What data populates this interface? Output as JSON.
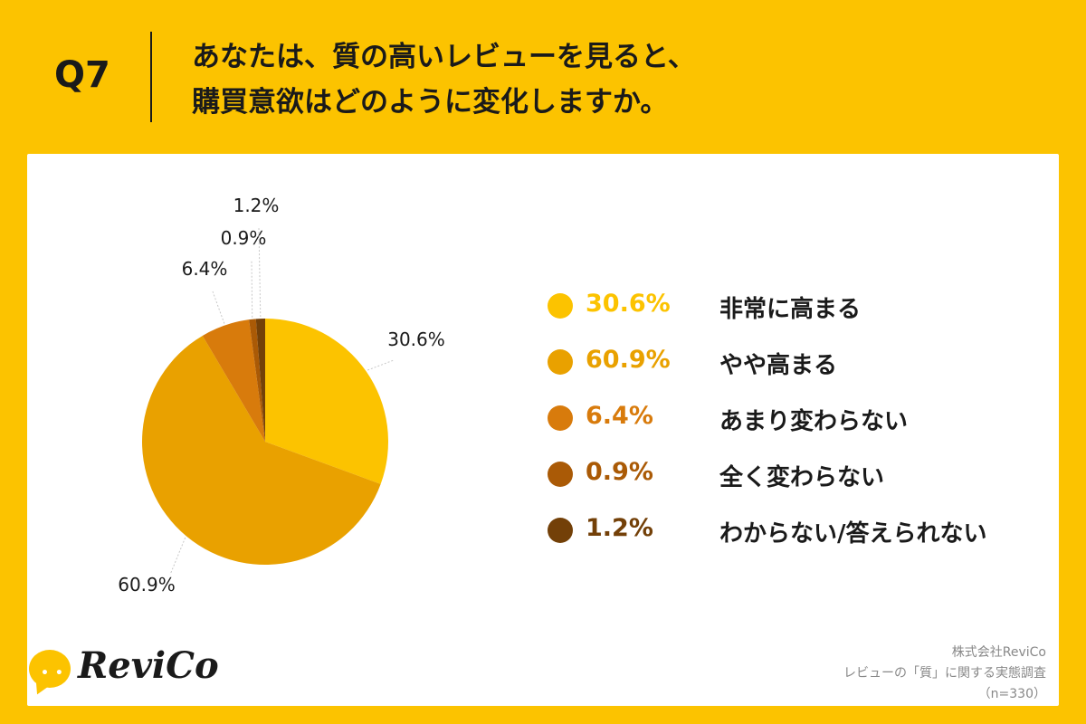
{
  "question": {
    "number": "Q7",
    "title_line1": "あなたは、質の高いレビューを見ると、",
    "title_line2": "購買意欲はどのように変化しますか。"
  },
  "chart_data": {
    "type": "pie",
    "categories": [
      "非常に高まる",
      "やや高まる",
      "あまり変わらない",
      "全く変わらない",
      "わからない/答えられない"
    ],
    "values": [
      30.6,
      60.9,
      6.4,
      0.9,
      1.2
    ],
    "value_labels": [
      "30.6%",
      "60.9%",
      "6.4%",
      "0.9%",
      "1.2%"
    ],
    "colors": [
      "#fcc300",
      "#e9a100",
      "#d87b0c",
      "#aa5a06",
      "#734008"
    ],
    "start": "12 o'clock, clockwise",
    "legend_placement": "right"
  },
  "brand": {
    "logo_text": "ReviCo",
    "logo_icon": "speech-bubble-icon"
  },
  "source": {
    "company": "株式会社ReviCo",
    "survey": "レビューの「質」に関する実態調査",
    "sample": "（n=330）"
  }
}
